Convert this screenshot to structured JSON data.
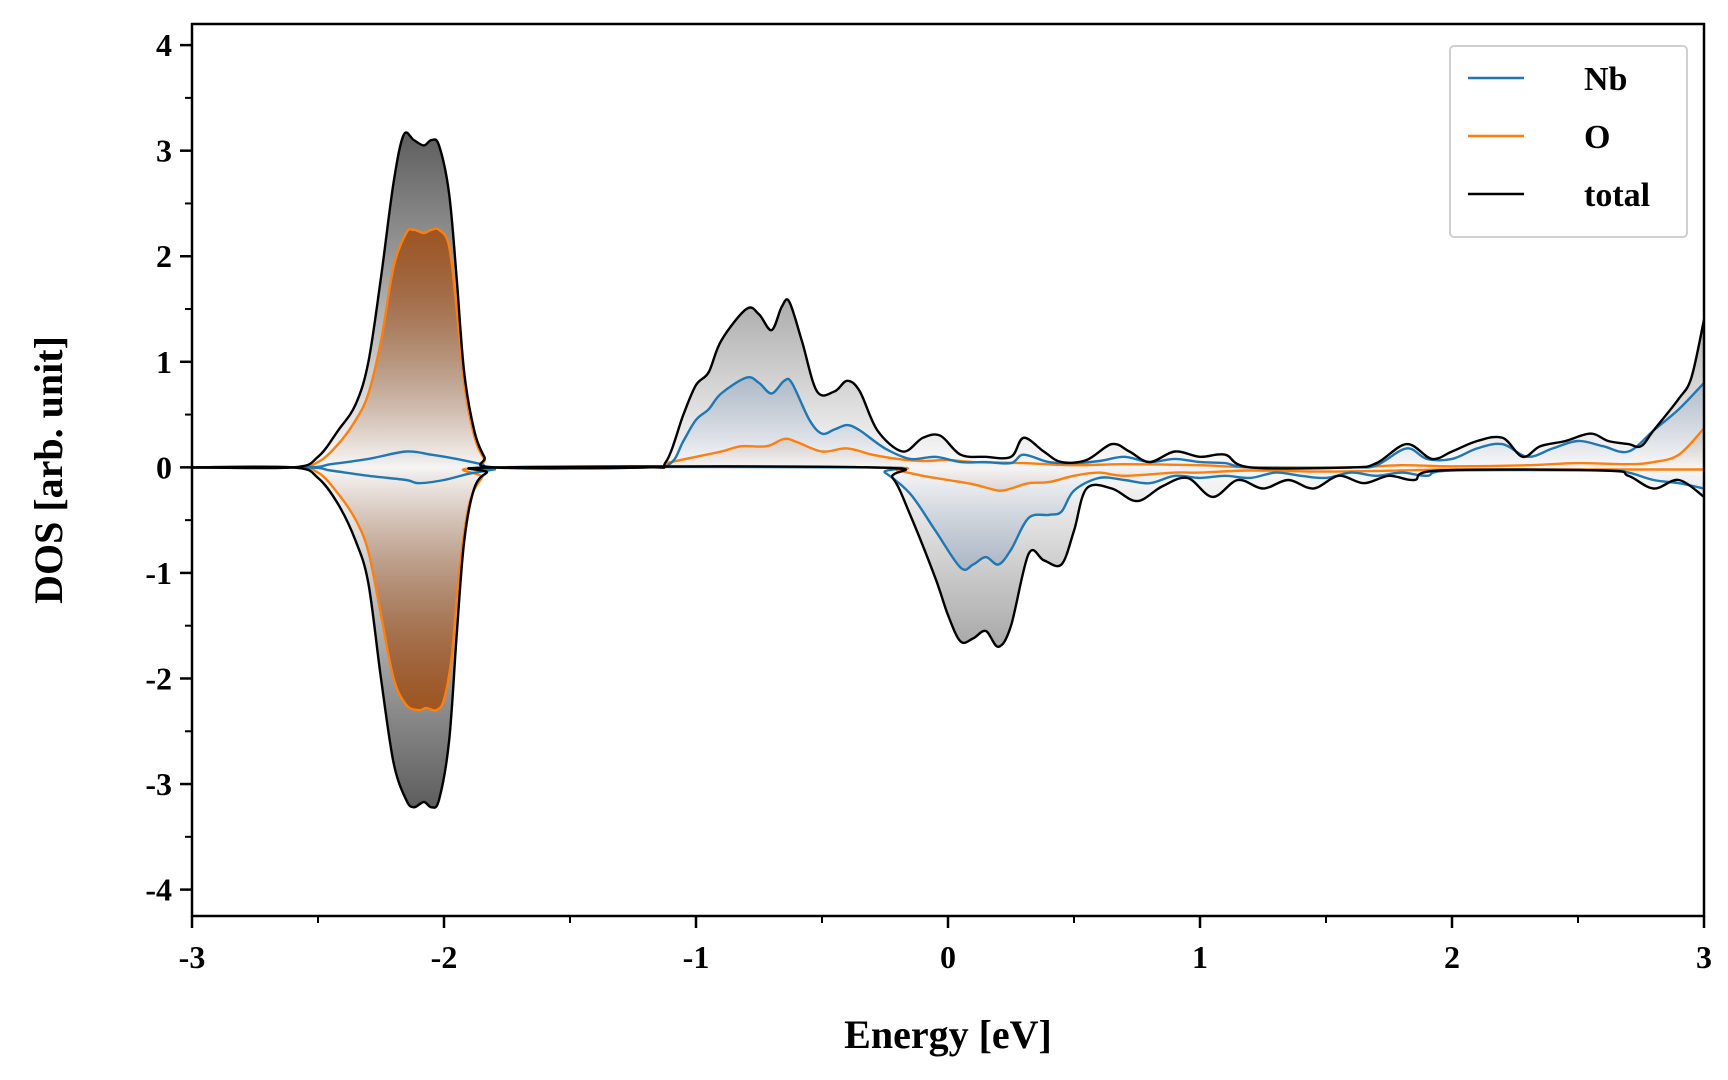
{
  "chart_data": {
    "type": "line",
    "title": "",
    "xlabel": "Energy [eV]",
    "ylabel": "DOS [arb. unit]",
    "xlim": [
      -3,
      3
    ],
    "ylim": [
      -4.25,
      4.2
    ],
    "xticks": [
      -3,
      -2,
      -1,
      0,
      1,
      2,
      3
    ],
    "xtick_labels": [
      "-3",
      "-2",
      "-1",
      "0",
      "1",
      "2",
      "3"
    ],
    "yticks": [
      4,
      3,
      2,
      1,
      0,
      -1,
      -2,
      -3,
      -4
    ],
    "ytick_labels": [
      "4",
      "3",
      "2",
      "1",
      "0",
      "-1",
      "-2",
      "-3",
      "-4"
    ],
    "x_minor_step": 0.5,
    "y_minor_step": 0.5,
    "legend_position": "top-right",
    "grid": false,
    "series": [
      {
        "name": "Nb",
        "color": "#1f77b4",
        "spin_up": [
          [
            -3,
            0
          ],
          [
            -2.55,
            0
          ],
          [
            -2.45,
            0.03
          ],
          [
            -2.3,
            0.08
          ],
          [
            -2.15,
            0.15
          ],
          [
            -2.05,
            0.12
          ],
          [
            -1.95,
            0.08
          ],
          [
            -1.85,
            0.03
          ],
          [
            -1.78,
            0
          ],
          [
            -1.2,
            0
          ],
          [
            -1.1,
            0.04
          ],
          [
            -1.05,
            0.25
          ],
          [
            -1.0,
            0.45
          ],
          [
            -0.95,
            0.55
          ],
          [
            -0.9,
            0.7
          ],
          [
            -0.8,
            0.85
          ],
          [
            -0.75,
            0.8
          ],
          [
            -0.7,
            0.7
          ],
          [
            -0.65,
            0.82
          ],
          [
            -0.62,
            0.8
          ],
          [
            -0.55,
            0.45
          ],
          [
            -0.5,
            0.32
          ],
          [
            -0.45,
            0.36
          ],
          [
            -0.4,
            0.4
          ],
          [
            -0.35,
            0.35
          ],
          [
            -0.25,
            0.18
          ],
          [
            -0.15,
            0.08
          ],
          [
            -0.05,
            0.1
          ],
          [
            0.05,
            0.05
          ],
          [
            0.15,
            0.05
          ],
          [
            0.25,
            0.04
          ],
          [
            0.3,
            0.12
          ],
          [
            0.4,
            0.05
          ],
          [
            0.5,
            0.04
          ],
          [
            0.6,
            0.06
          ],
          [
            0.7,
            0.1
          ],
          [
            0.8,
            0.05
          ],
          [
            0.9,
            0.08
          ],
          [
            1.0,
            0.05
          ],
          [
            1.1,
            0.04
          ],
          [
            1.2,
            0
          ],
          [
            1.6,
            0
          ],
          [
            1.7,
            0.02
          ],
          [
            1.82,
            0.18
          ],
          [
            1.9,
            0.08
          ],
          [
            2.0,
            0.08
          ],
          [
            2.1,
            0.18
          ],
          [
            2.2,
            0.22
          ],
          [
            2.3,
            0.1
          ],
          [
            2.4,
            0.18
          ],
          [
            2.5,
            0.25
          ],
          [
            2.6,
            0.2
          ],
          [
            2.7,
            0.15
          ],
          [
            2.8,
            0.35
          ],
          [
            2.9,
            0.55
          ],
          [
            3.0,
            0.8
          ]
        ],
        "spin_down": [
          [
            -3,
            0
          ],
          [
            -2.55,
            0
          ],
          [
            -2.45,
            -0.03
          ],
          [
            -2.3,
            -0.08
          ],
          [
            -2.15,
            -0.12
          ],
          [
            -2.1,
            -0.15
          ],
          [
            -2.0,
            -0.12
          ],
          [
            -1.9,
            -0.06
          ],
          [
            -1.8,
            -0.02
          ],
          [
            -1.75,
            0
          ],
          [
            -0.3,
            0
          ],
          [
            -0.25,
            -0.05
          ],
          [
            -0.15,
            -0.25
          ],
          [
            -0.05,
            -0.6
          ],
          [
            0.05,
            -0.95
          ],
          [
            0.1,
            -0.92
          ],
          [
            0.15,
            -0.85
          ],
          [
            0.2,
            -0.92
          ],
          [
            0.25,
            -0.78
          ],
          [
            0.32,
            -0.48
          ],
          [
            0.4,
            -0.45
          ],
          [
            0.45,
            -0.42
          ],
          [
            0.5,
            -0.22
          ],
          [
            0.6,
            -0.1
          ],
          [
            0.7,
            -0.12
          ],
          [
            0.8,
            -0.15
          ],
          [
            0.9,
            -0.08
          ],
          [
            1.0,
            -0.1
          ],
          [
            1.1,
            -0.08
          ],
          [
            1.2,
            -0.1
          ],
          [
            1.3,
            -0.05
          ],
          [
            1.4,
            -0.08
          ],
          [
            1.5,
            -0.1
          ],
          [
            1.6,
            -0.05
          ],
          [
            1.7,
            -0.08
          ],
          [
            1.8,
            -0.05
          ],
          [
            1.9,
            -0.08
          ],
          [
            2.0,
            -0.03
          ],
          [
            2.6,
            -0.03
          ],
          [
            2.7,
            -0.05
          ],
          [
            2.8,
            -0.12
          ],
          [
            2.9,
            -0.15
          ],
          [
            3.0,
            -0.2
          ]
        ]
      },
      {
        "name": "O",
        "color": "#ff7f0e",
        "spin_up": [
          [
            -3,
            0
          ],
          [
            -2.6,
            0
          ],
          [
            -2.5,
            0.05
          ],
          [
            -2.42,
            0.22
          ],
          [
            -2.35,
            0.45
          ],
          [
            -2.3,
            0.7
          ],
          [
            -2.25,
            1.2
          ],
          [
            -2.2,
            1.9
          ],
          [
            -2.15,
            2.22
          ],
          [
            -2.12,
            2.25
          ],
          [
            -2.08,
            2.22
          ],
          [
            -2.05,
            2.25
          ],
          [
            -2.02,
            2.25
          ],
          [
            -1.98,
            2.1
          ],
          [
            -1.95,
            1.5
          ],
          [
            -1.92,
            0.8
          ],
          [
            -1.88,
            0.3
          ],
          [
            -1.84,
            0.08
          ],
          [
            -1.8,
            0
          ],
          [
            -1.2,
            0
          ],
          [
            -1.1,
            0.05
          ],
          [
            -1.0,
            0.1
          ],
          [
            -0.9,
            0.15
          ],
          [
            -0.82,
            0.2
          ],
          [
            -0.72,
            0.2
          ],
          [
            -0.65,
            0.27
          ],
          [
            -0.6,
            0.24
          ],
          [
            -0.5,
            0.15
          ],
          [
            -0.4,
            0.18
          ],
          [
            -0.3,
            0.12
          ],
          [
            -0.2,
            0.08
          ],
          [
            -0.1,
            0.06
          ],
          [
            0.0,
            0.07
          ],
          [
            0.1,
            0.05
          ],
          [
            0.3,
            0.04
          ],
          [
            0.5,
            0.02
          ],
          [
            0.7,
            0.03
          ],
          [
            1.0,
            0.02
          ],
          [
            1.2,
            0
          ],
          [
            1.6,
            0
          ],
          [
            1.8,
            0.02
          ],
          [
            2.0,
            0.01
          ],
          [
            2.3,
            0.02
          ],
          [
            2.5,
            0.04
          ],
          [
            2.7,
            0.03
          ],
          [
            2.8,
            0.05
          ],
          [
            2.9,
            0.12
          ],
          [
            3.0,
            0.37
          ]
        ],
        "spin_down": [
          [
            -3,
            0
          ],
          [
            -2.6,
            0
          ],
          [
            -2.5,
            -0.05
          ],
          [
            -2.42,
            -0.25
          ],
          [
            -2.35,
            -0.5
          ],
          [
            -2.3,
            -0.8
          ],
          [
            -2.25,
            -1.4
          ],
          [
            -2.2,
            -2.0
          ],
          [
            -2.15,
            -2.25
          ],
          [
            -2.1,
            -2.3
          ],
          [
            -2.07,
            -2.28
          ],
          [
            -2.03,
            -2.3
          ],
          [
            -2.0,
            -2.2
          ],
          [
            -1.97,
            -1.8
          ],
          [
            -1.94,
            -1.0
          ],
          [
            -1.9,
            -0.35
          ],
          [
            -1.85,
            -0.1
          ],
          [
            -1.8,
            0
          ],
          [
            -0.3,
            0
          ],
          [
            -0.2,
            -0.03
          ],
          [
            -0.1,
            -0.08
          ],
          [
            0.0,
            -0.12
          ],
          [
            0.1,
            -0.16
          ],
          [
            0.2,
            -0.22
          ],
          [
            0.25,
            -0.2
          ],
          [
            0.32,
            -0.15
          ],
          [
            0.4,
            -0.14
          ],
          [
            0.5,
            -0.08
          ],
          [
            0.6,
            -0.05
          ],
          [
            0.7,
            -0.08
          ],
          [
            0.9,
            -0.05
          ],
          [
            1.0,
            -0.05
          ],
          [
            1.2,
            -0.03
          ],
          [
            1.5,
            -0.04
          ],
          [
            1.8,
            -0.03
          ],
          [
            2.0,
            -0.02
          ],
          [
            2.5,
            -0.02
          ],
          [
            3.0,
            -0.02
          ]
        ]
      },
      {
        "name": "total",
        "color": "#000000",
        "spin_up": [
          [
            -3,
            0
          ],
          [
            -2.6,
            0
          ],
          [
            -2.5,
            0.1
          ],
          [
            -2.42,
            0.35
          ],
          [
            -2.35,
            0.6
          ],
          [
            -2.3,
            1.0
          ],
          [
            -2.25,
            1.8
          ],
          [
            -2.2,
            2.7
          ],
          [
            -2.16,
            3.15
          ],
          [
            -2.12,
            3.1
          ],
          [
            -2.08,
            3.05
          ],
          [
            -2.05,
            3.1
          ],
          [
            -2.02,
            3.05
          ],
          [
            -1.98,
            2.6
          ],
          [
            -1.95,
            1.8
          ],
          [
            -1.92,
            0.9
          ],
          [
            -1.88,
            0.35
          ],
          [
            -1.84,
            0.1
          ],
          [
            -1.8,
            0
          ],
          [
            -1.2,
            0
          ],
          [
            -1.12,
            0.05
          ],
          [
            -1.05,
            0.5
          ],
          [
            -1.0,
            0.78
          ],
          [
            -0.95,
            0.9
          ],
          [
            -0.9,
            1.2
          ],
          [
            -0.8,
            1.5
          ],
          [
            -0.75,
            1.45
          ],
          [
            -0.7,
            1.3
          ],
          [
            -0.66,
            1.52
          ],
          [
            -0.63,
            1.57
          ],
          [
            -0.58,
            1.2
          ],
          [
            -0.52,
            0.72
          ],
          [
            -0.45,
            0.72
          ],
          [
            -0.4,
            0.82
          ],
          [
            -0.35,
            0.72
          ],
          [
            -0.28,
            0.35
          ],
          [
            -0.18,
            0.15
          ],
          [
            -0.1,
            0.28
          ],
          [
            -0.03,
            0.3
          ],
          [
            0.05,
            0.12
          ],
          [
            0.15,
            0.1
          ],
          [
            0.25,
            0.1
          ],
          [
            0.3,
            0.28
          ],
          [
            0.38,
            0.15
          ],
          [
            0.45,
            0.05
          ],
          [
            0.55,
            0.07
          ],
          [
            0.65,
            0.22
          ],
          [
            0.72,
            0.15
          ],
          [
            0.8,
            0.05
          ],
          [
            0.9,
            0.15
          ],
          [
            1.0,
            0.1
          ],
          [
            1.1,
            0.12
          ],
          [
            1.2,
            0
          ],
          [
            1.6,
            0
          ],
          [
            1.7,
            0.04
          ],
          [
            1.82,
            0.22
          ],
          [
            1.92,
            0.08
          ],
          [
            2.0,
            0.15
          ],
          [
            2.1,
            0.25
          ],
          [
            2.2,
            0.28
          ],
          [
            2.28,
            0.1
          ],
          [
            2.35,
            0.2
          ],
          [
            2.45,
            0.25
          ],
          [
            2.55,
            0.32
          ],
          [
            2.62,
            0.25
          ],
          [
            2.7,
            0.22
          ],
          [
            2.75,
            0.2
          ],
          [
            2.8,
            0.35
          ],
          [
            2.9,
            0.65
          ],
          [
            2.95,
            0.85
          ],
          [
            3.0,
            1.4
          ]
        ],
        "spin_down": [
          [
            -3,
            0
          ],
          [
            -2.6,
            0
          ],
          [
            -2.5,
            -0.1
          ],
          [
            -2.42,
            -0.35
          ],
          [
            -2.35,
            -0.7
          ],
          [
            -2.3,
            -1.1
          ],
          [
            -2.25,
            -2.0
          ],
          [
            -2.2,
            -2.8
          ],
          [
            -2.15,
            -3.15
          ],
          [
            -2.12,
            -3.22
          ],
          [
            -2.08,
            -3.17
          ],
          [
            -2.05,
            -3.22
          ],
          [
            -2.02,
            -3.15
          ],
          [
            -1.98,
            -2.6
          ],
          [
            -1.95,
            -1.6
          ],
          [
            -1.92,
            -0.7
          ],
          [
            -1.88,
            -0.2
          ],
          [
            -1.83,
            -0.05
          ],
          [
            -1.78,
            0
          ],
          [
            -0.3,
            0
          ],
          [
            -0.22,
            -0.1
          ],
          [
            -0.15,
            -0.45
          ],
          [
            -0.05,
            -1.05
          ],
          [
            0.0,
            -1.4
          ],
          [
            0.05,
            -1.65
          ],
          [
            0.1,
            -1.62
          ],
          [
            0.15,
            -1.55
          ],
          [
            0.2,
            -1.7
          ],
          [
            0.25,
            -1.5
          ],
          [
            0.32,
            -0.82
          ],
          [
            0.38,
            -0.88
          ],
          [
            0.45,
            -0.92
          ],
          [
            0.5,
            -0.6
          ],
          [
            0.55,
            -0.2
          ],
          [
            0.65,
            -0.2
          ],
          [
            0.75,
            -0.32
          ],
          [
            0.85,
            -0.18
          ],
          [
            0.95,
            -0.1
          ],
          [
            1.05,
            -0.28
          ],
          [
            1.15,
            -0.12
          ],
          [
            1.25,
            -0.2
          ],
          [
            1.35,
            -0.12
          ],
          [
            1.45,
            -0.2
          ],
          [
            1.55,
            -0.08
          ],
          [
            1.65,
            -0.15
          ],
          [
            1.75,
            -0.08
          ],
          [
            1.85,
            -0.12
          ],
          [
            1.95,
            -0.03
          ],
          [
            2.6,
            -0.03
          ],
          [
            2.7,
            -0.08
          ],
          [
            2.8,
            -0.2
          ],
          [
            2.9,
            -0.12
          ],
          [
            3.0,
            -0.28
          ]
        ]
      }
    ]
  }
}
